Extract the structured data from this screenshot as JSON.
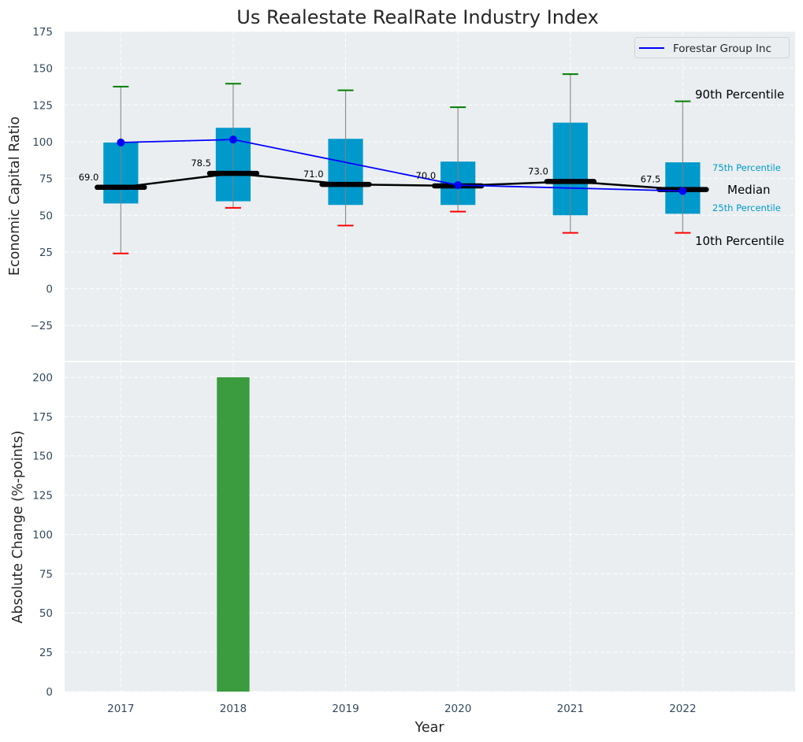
{
  "chart_data": [
    {
      "panel": "top",
      "type": "box-percentile",
      "title": "Us Realestate RealRate Industry Index",
      "ylabel": "Economic Capital Ratio",
      "xlabel": "",
      "ylim": [
        -49,
        175
      ],
      "xlim": [
        2016.5,
        2023.0
      ],
      "yticks": [
        -25,
        0,
        25,
        50,
        75,
        100,
        125,
        150,
        175
      ],
      "ytick_labels": [
        "−25",
        "0",
        "25",
        "50",
        "75",
        "100",
        "125",
        "150",
        "175"
      ],
      "grid": true,
      "categories": [
        2017,
        2018,
        2019,
        2020,
        2021,
        2022
      ],
      "p10": [
        24.0,
        55.0,
        43.0,
        52.5,
        38.0,
        38.0
      ],
      "p25": [
        58.0,
        59.5,
        57.0,
        57.0,
        50.0,
        51.0
      ],
      "median": [
        69.0,
        78.5,
        71.0,
        70.0,
        73.0,
        67.5
      ],
      "median_labels": [
        "69.0",
        "78.5",
        "71.0",
        "70.0",
        "73.0",
        "67.5"
      ],
      "p75": [
        99.5,
        109.5,
        102.0,
        86.5,
        113.0,
        86.0
      ],
      "p90": [
        137.5,
        139.5,
        135.0,
        123.5,
        146.0,
        127.5
      ],
      "series": [
        {
          "name": "Forestar Group Inc",
          "x": [
            2017,
            2018,
            2020,
            2022
          ],
          "values": [
            99.5,
            101.5,
            70.5,
            66.5
          ],
          "color": "#0000ff"
        }
      ],
      "legend": {
        "position": "top-right",
        "entries": [
          "Forestar Group Inc"
        ]
      },
      "annotations": {
        "p90": "90th Percentile",
        "p75": "75th Percentile",
        "median": "Median",
        "p25": "25th Percentile",
        "p10": "10th Percentile"
      },
      "colors": {
        "box": "#0099cc",
        "median": "#000000",
        "p90_cap": "#008000",
        "p10_cap": "#ff0000",
        "whisker": "#808080",
        "annot_small": "#0099cc"
      }
    },
    {
      "panel": "bottom",
      "type": "bar",
      "ylabel": "Absolute Change (%-points)",
      "xlabel": "Year",
      "ylim": [
        0,
        209.5
      ],
      "xlim": [
        2016.5,
        2023.0
      ],
      "yticks": [
        0,
        25,
        50,
        75,
        100,
        125,
        150,
        175,
        200
      ],
      "ytick_labels": [
        "0",
        "25",
        "50",
        "75",
        "100",
        "125",
        "150",
        "175",
        "200"
      ],
      "grid": true,
      "categories": [
        2017,
        2018,
        2019,
        2020,
        2021,
        2022
      ],
      "xtick_labels": [
        "2017",
        "2018",
        "2019",
        "2020",
        "2021",
        "2022"
      ],
      "values": [
        0,
        200,
        0,
        0,
        0,
        0
      ],
      "color": "#3a9b3f"
    }
  ]
}
